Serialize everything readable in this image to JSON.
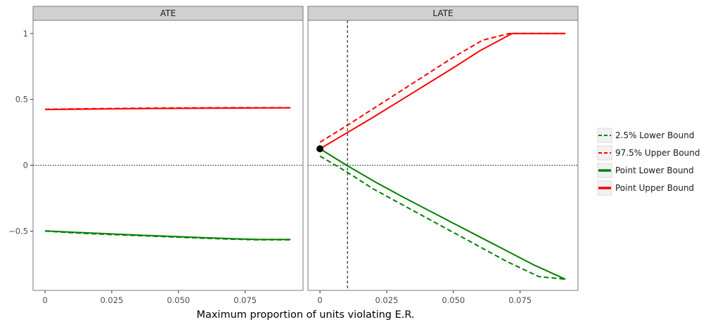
{
  "chart_data": {
    "type": "line",
    "xlabel": "Maximum proportion of units violating E.R.",
    "ylabel": "",
    "x_ticks": [
      "0",
      "0.025",
      "0.050",
      "0.075"
    ],
    "y_ticks": [
      "−0.5",
      "0",
      "0.5",
      "1"
    ],
    "legend_position": "right",
    "legend": [
      {
        "label": "2.5% Lower Bound",
        "color": "#008000",
        "dashed": true
      },
      {
        "label": "97.5% Upper Bound",
        "color": "#ff0000",
        "dashed": true
      },
      {
        "label": "Point Lower Bound",
        "color": "#008000",
        "dashed": false
      },
      {
        "label": "Point Upper Bound",
        "color": "#ff0000",
        "dashed": false
      }
    ],
    "panels": [
      {
        "strip": "ATE",
        "xlim": [
          -0.0045,
          0.0967
        ],
        "ylim": [
          -0.95,
          1.1
        ],
        "hlines": [
          0
        ],
        "vlines": [],
        "points": [],
        "series": [
          {
            "name": "2.5% Lower Bound",
            "color": "#008000",
            "dashed": true,
            "x": [
              0,
              0.01,
              0.02,
              0.03,
              0.04,
              0.05,
              0.06,
              0.07,
              0.08,
              0.092
            ],
            "y": [
              -0.5,
              -0.512,
              -0.522,
              -0.53,
              -0.538,
              -0.546,
              -0.554,
              -0.561,
              -0.566,
              -0.566
            ]
          },
          {
            "name": "97.5% Upper Bound",
            "color": "#ff0000",
            "dashed": true,
            "x": [
              0,
              0.01,
              0.02,
              0.03,
              0.04,
              0.05,
              0.06,
              0.07,
              0.08,
              0.092
            ],
            "y": [
              0.425,
              0.428,
              0.43,
              0.432,
              0.434,
              0.435,
              0.436,
              0.437,
              0.437,
              0.437
            ]
          },
          {
            "name": "Point Lower Bound",
            "color": "#008000",
            "dashed": false,
            "x": [
              0,
              0.01,
              0.02,
              0.03,
              0.04,
              0.05,
              0.06,
              0.07,
              0.08,
              0.092
            ],
            "y": [
              -0.498,
              -0.508,
              -0.517,
              -0.526,
              -0.534,
              -0.542,
              -0.55,
              -0.557,
              -0.563,
              -0.563
            ]
          },
          {
            "name": "Point Upper Bound",
            "color": "#ff0000",
            "dashed": false,
            "x": [
              0,
              0.01,
              0.02,
              0.03,
              0.04,
              0.05,
              0.06,
              0.07,
              0.08,
              0.092
            ],
            "y": [
              0.423,
              0.425,
              0.427,
              0.429,
              0.431,
              0.432,
              0.433,
              0.434,
              0.435,
              0.436
            ]
          }
        ]
      },
      {
        "strip": "LATE",
        "xlim": [
          -0.0045,
          0.0967
        ],
        "ylim": [
          -0.95,
          1.1
        ],
        "hlines": [
          0
        ],
        "vlines": [
          0.0103
        ],
        "points": [
          {
            "x": 0,
            "y": 0.125
          }
        ],
        "series": [
          {
            "name": "2.5% Lower Bound",
            "color": "#008000",
            "dashed": true,
            "x": [
              0,
              0.01,
              0.02,
              0.03,
              0.04,
              0.05,
              0.06,
              0.07,
              0.082,
              0.092
            ],
            "y": [
              0.07,
              -0.05,
              -0.18,
              -0.29,
              -0.4,
              -0.51,
              -0.62,
              -0.73,
              -0.845,
              -0.865
            ]
          },
          {
            "name": "97.5% Upper Bound",
            "color": "#ff0000",
            "dashed": true,
            "x": [
              0,
              0.01,
              0.02,
              0.03,
              0.04,
              0.05,
              0.061,
              0.071,
              0.08,
              0.092
            ],
            "y": [
              0.175,
              0.3,
              0.43,
              0.56,
              0.69,
              0.82,
              0.95,
              1.0,
              1.0,
              1.0
            ]
          },
          {
            "name": "Point Lower Bound",
            "color": "#008000",
            "dashed": false,
            "x": [
              0,
              0.01,
              0.021,
              0.031,
              0.04,
              0.05,
              0.06,
              0.07,
              0.08,
              0.092
            ],
            "y": [
              0.125,
              0.0,
              -0.13,
              -0.24,
              -0.335,
              -0.44,
              -0.545,
              -0.65,
              -0.755,
              -0.865
            ]
          },
          {
            "name": "Point Upper Bound",
            "color": "#ff0000",
            "dashed": false,
            "x": [
              0,
              0.01,
              0.02,
              0.03,
              0.04,
              0.05,
              0.06,
              0.072,
              0.08,
              0.092
            ],
            "y": [
              0.125,
              0.245,
              0.365,
              0.49,
              0.615,
              0.74,
              0.87,
              1.0,
              1.0,
              1.0
            ]
          }
        ]
      }
    ]
  }
}
